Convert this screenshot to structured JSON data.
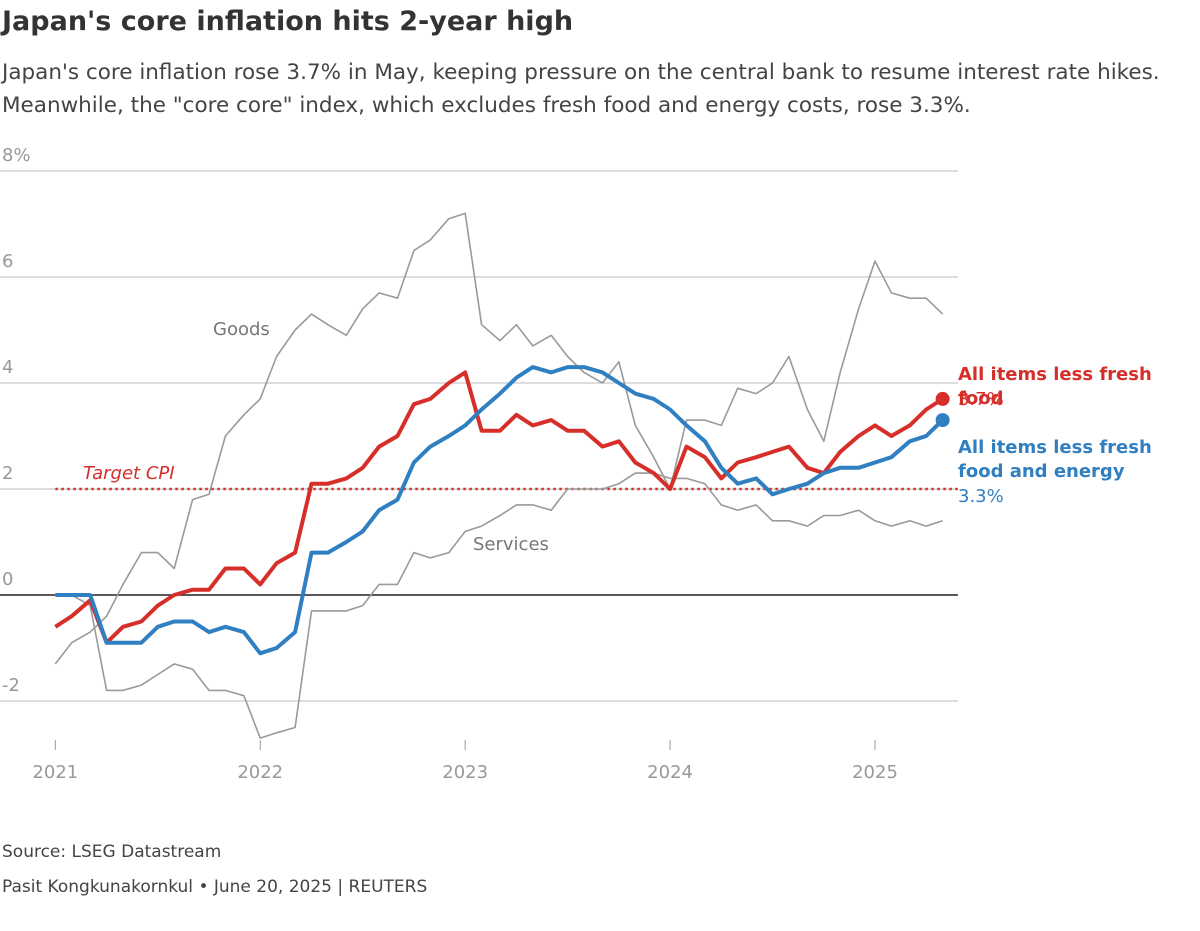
{
  "chart_data": {
    "type": "line",
    "title": "Japan's core inflation hits 2-year high",
    "subtitle": "Japan's core inflation rose 3.7% in May, keeping pressure on the central bank to resume interest rate hikes. Meanwhile, the \"core core\" index, which excludes fresh food and energy costs, rose 3.3%.",
    "source": "Source: LSEG Datastream",
    "credit": "Pasit Kongkunakornkul • June 20, 2025 | REUTERS",
    "x": [
      2021,
      2021.08,
      2021.17,
      2021.25,
      2021.33,
      2021.42,
      2021.5,
      2021.58,
      2021.67,
      2021.75,
      2021.83,
      2021.92,
      2022,
      2022.08,
      2022.17,
      2022.25,
      2022.33,
      2022.42,
      2022.5,
      2022.58,
      2022.67,
      2022.75,
      2022.83,
      2022.92,
      2023,
      2023.08,
      2023.17,
      2023.25,
      2023.33,
      2023.42,
      2023.5,
      2023.58,
      2023.67,
      2023.75,
      2023.83,
      2023.92,
      2024,
      2024.08,
      2024.17,
      2024.25,
      2024.33,
      2024.42,
      2024.5,
      2024.58,
      2024.67,
      2024.75,
      2024.83,
      2024.92,
      2025,
      2025.08,
      2025.17,
      2025.25,
      2025.33
    ],
    "xlim": [
      2020.73,
      2025.405
    ],
    "xticks": [
      2021,
      2022,
      2023,
      2024,
      2025
    ],
    "ylim": [
      -3,
      8
    ],
    "yticks": [
      {
        "value": 8,
        "label": "8%"
      },
      6,
      4,
      2,
      0,
      -2
    ],
    "grid": true,
    "target": {
      "label": "Target CPI",
      "value": 2,
      "color": "#d62f2a"
    },
    "series": [
      {
        "name": "Goods",
        "color": "#9a9a9a",
        "values": [
          -1.3,
          -0.9,
          -0.7,
          -0.4,
          0.2,
          0.8,
          0.8,
          0.5,
          1.8,
          1.9,
          3.0,
          3.4,
          3.7,
          4.5,
          5.0,
          5.3,
          5.1,
          4.9,
          5.4,
          5.7,
          5.6,
          6.5,
          6.7,
          7.1,
          7.2,
          5.1,
          4.8,
          5.1,
          4.7,
          4.9,
          4.5,
          4.2,
          4.0,
          4.4,
          3.2,
          2.6,
          2.0,
          3.3,
          3.3,
          3.2,
          3.9,
          3.8,
          4.0,
          4.5,
          3.5,
          2.9,
          4.2,
          5.4,
          6.3,
          5.7,
          5.6,
          5.6,
          5.3
        ]
      },
      {
        "name": "Services",
        "color": "#9a9a9a",
        "values": [
          0,
          0,
          -0.2,
          -1.8,
          -1.8,
          -1.7,
          -1.5,
          -1.3,
          -1.4,
          -1.8,
          -1.8,
          -1.9,
          -2.7,
          -2.6,
          -2.5,
          -0.3,
          -0.3,
          -0.3,
          -0.2,
          0.2,
          0.2,
          0.8,
          0.7,
          0.8,
          1.2,
          1.3,
          1.5,
          1.7,
          1.7,
          1.6,
          2.0,
          2.0,
          2.0,
          2.1,
          2.3,
          2.3,
          2.2,
          2.2,
          2.1,
          1.7,
          1.6,
          1.7,
          1.4,
          1.4,
          1.3,
          1.5,
          1.5,
          1.6,
          1.4,
          1.3,
          1.4,
          1.3,
          1.4
        ]
      },
      {
        "name": "All items less fresh food",
        "color": "#d62f2a",
        "last_value_label": "3.7%",
        "values": [
          -0.6,
          -0.4,
          -0.1,
          -0.9,
          -0.6,
          -0.5,
          -0.2,
          0.0,
          0.1,
          0.1,
          0.5,
          0.5,
          0.2,
          0.6,
          0.8,
          2.1,
          2.1,
          2.2,
          2.4,
          2.8,
          3.0,
          3.6,
          3.7,
          4.0,
          4.2,
          3.1,
          3.1,
          3.4,
          3.2,
          3.3,
          3.1,
          3.1,
          2.8,
          2.9,
          2.5,
          2.3,
          2.0,
          2.8,
          2.6,
          2.2,
          2.5,
          2.6,
          2.7,
          2.8,
          2.4,
          2.3,
          2.7,
          3.0,
          3.2,
          3.0,
          3.2,
          3.5,
          3.7
        ]
      },
      {
        "name": "All items less fresh food and energy",
        "color": "#2f7fc1",
        "last_value_label": "3.3%",
        "values": [
          0,
          0,
          0,
          -0.9,
          -0.9,
          -0.9,
          -0.6,
          -0.5,
          -0.5,
          -0.7,
          -0.6,
          -0.7,
          -1.1,
          -1.0,
          -0.7,
          0.8,
          0.8,
          1.0,
          1.2,
          1.6,
          1.8,
          2.5,
          2.8,
          3.0,
          3.2,
          3.5,
          3.8,
          4.1,
          4.3,
          4.2,
          4.3,
          4.3,
          4.2,
          4.0,
          3.8,
          3.7,
          3.5,
          3.2,
          2.9,
          2.4,
          2.1,
          2.2,
          1.9,
          2.0,
          2.1,
          2.3,
          2.4,
          2.4,
          2.5,
          2.6,
          2.9,
          3.0,
          3.3
        ]
      }
    ]
  }
}
